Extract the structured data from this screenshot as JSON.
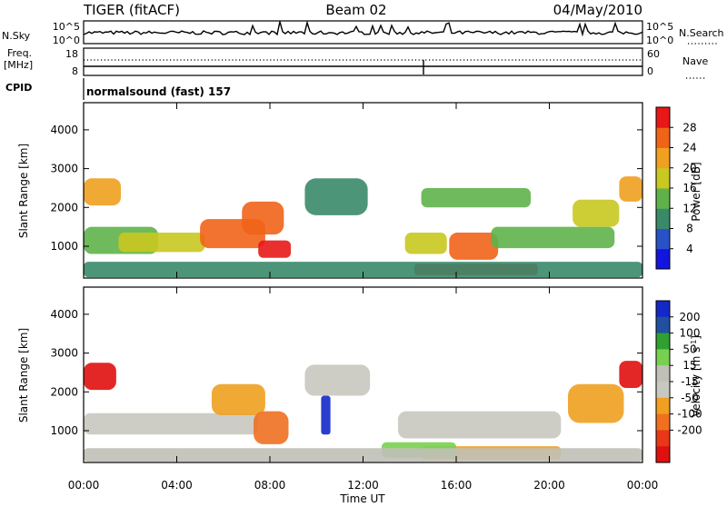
{
  "header": {
    "station": "TIGER (fitACF)",
    "beam": "Beam 02",
    "date": "04/May/2010"
  },
  "aux_panels": {
    "nsky_label": "N.Sky",
    "nsky_ticks": [
      "10^5",
      "10^0"
    ],
    "nsearch_label": "N.Search",
    "nsearch_ticks": [
      "10^5",
      "10^0"
    ],
    "freq_label": "Freq.",
    "freq_unit": "[MHz]",
    "freq_ticks": [
      "18",
      "8"
    ],
    "nave_label": "Nave",
    "nave_ticks": [
      "60",
      "0"
    ],
    "cpid_label": "CPID",
    "cpid_value": "normalsound (fast) 157"
  },
  "colors": {
    "power_scale": [
      "#1414e0",
      "#2a52c8",
      "#3a8a6a",
      "#5fb24a",
      "#c8c820",
      "#f0a020",
      "#f06418",
      "#e81818"
    ],
    "velocity_scale": [
      "#1428c8",
      "#2050a0",
      "#30a030",
      "#78d050",
      "#c0c0b8",
      "#c8c8c0",
      "#f0a020",
      "#f07020",
      "#e83818",
      "#e01010"
    ]
  },
  "chart_data": [
    {
      "type": "heatmap",
      "name": "power",
      "xlabel": "",
      "ylabel": "Slant Range [km]",
      "x_ticks": [
        "00:00",
        "04:00",
        "08:00",
        "12:00",
        "16:00",
        "20:00",
        "00:00"
      ],
      "y_ticks": [
        1000,
        2000,
        3000,
        4000
      ],
      "xlim": [
        0,
        24
      ],
      "ylim": [
        180,
        4700
      ],
      "colorbar": {
        "label": "Power [dB]",
        "ticks": [
          4,
          8,
          12,
          16,
          20,
          24,
          28
        ],
        "range": [
          0,
          32
        ]
      },
      "regions": [
        {
          "t0": 0.0,
          "t1": 1.6,
          "r0": 2050,
          "r1": 2750,
          "level": 22
        },
        {
          "t0": 0.0,
          "t1": 3.2,
          "r0": 800,
          "r1": 1500,
          "level": 14
        },
        {
          "t0": 1.5,
          "t1": 5.2,
          "r0": 850,
          "r1": 1350,
          "level": 18
        },
        {
          "t0": 5.0,
          "t1": 7.8,
          "r0": 950,
          "r1": 1700,
          "level": 24
        },
        {
          "t0": 6.8,
          "t1": 8.6,
          "r0": 1300,
          "r1": 2150,
          "level": 25
        },
        {
          "t0": 7.5,
          "t1": 8.9,
          "r0": 700,
          "r1": 1150,
          "level": 30
        },
        {
          "t0": 9.5,
          "t1": 12.2,
          "r0": 1800,
          "r1": 2750,
          "level": 8
        },
        {
          "t0": 13.8,
          "t1": 15.6,
          "r0": 800,
          "r1": 1350,
          "level": 18
        },
        {
          "t0": 15.7,
          "t1": 17.8,
          "r0": 650,
          "r1": 1350,
          "level": 27
        },
        {
          "t0": 14.2,
          "t1": 19.5,
          "r0": 250,
          "r1": 550,
          "level": 28
        },
        {
          "t0": 14.5,
          "t1": 19.2,
          "r0": 2000,
          "r1": 2500,
          "level": 12
        },
        {
          "t0": 17.5,
          "t1": 22.8,
          "r0": 950,
          "r1": 1500,
          "level": 14
        },
        {
          "t0": 21.0,
          "t1": 23.0,
          "r0": 1500,
          "r1": 2200,
          "level": 18
        },
        {
          "t0": 23.0,
          "t1": 24.0,
          "r0": 2150,
          "r1": 2800,
          "level": 22
        },
        {
          "t0": 0.0,
          "t1": 24.0,
          "r0": 200,
          "r1": 600,
          "level": 10
        }
      ]
    },
    {
      "type": "heatmap",
      "name": "velocity",
      "xlabel": "Time UT",
      "ylabel": "Slant Range [km]",
      "x_ticks": [
        "00:00",
        "04:00",
        "08:00",
        "12:00",
        "16:00",
        "20:00",
        "00:00"
      ],
      "y_ticks": [
        1000,
        2000,
        3000,
        4000
      ],
      "xlim": [
        0,
        24
      ],
      "ylim": [
        180,
        4700
      ],
      "colorbar": {
        "label": "Velocity [m s^-1]",
        "ticks": [
          200,
          100,
          50,
          15,
          -15,
          -50,
          -100,
          -200
        ],
        "range": [
          -250,
          250
        ]
      },
      "regions": [
        {
          "t0": 0.0,
          "t1": 1.4,
          "r0": 2050,
          "r1": 2750,
          "level": -200
        },
        {
          "t0": 0.0,
          "t1": 7.5,
          "r0": 900,
          "r1": 1450,
          "level": 0
        },
        {
          "t0": 5.5,
          "t1": 7.8,
          "r0": 1400,
          "r1": 2200,
          "level": -60
        },
        {
          "t0": 7.3,
          "t1": 8.8,
          "r0": 650,
          "r1": 1500,
          "level": -120
        },
        {
          "t0": 9.5,
          "t1": 12.3,
          "r0": 1900,
          "r1": 2700,
          "level": 0
        },
        {
          "t0": 10.2,
          "t1": 10.6,
          "r0": 900,
          "r1": 1900,
          "level": 220
        },
        {
          "t0": 13.5,
          "t1": 20.5,
          "r0": 800,
          "r1": 1500,
          "level": 0
        },
        {
          "t0": 14.5,
          "t1": 20.5,
          "r0": 250,
          "r1": 600,
          "level": -60
        },
        {
          "t0": 12.8,
          "t1": 16.0,
          "r0": 300,
          "r1": 700,
          "level": 60
        },
        {
          "t0": 20.8,
          "t1": 23.2,
          "r0": 1200,
          "r1": 2200,
          "level": -80
        },
        {
          "t0": 23.0,
          "t1": 24.0,
          "r0": 2100,
          "r1": 2800,
          "level": -200
        },
        {
          "t0": 0.0,
          "t1": 24.0,
          "r0": 200,
          "r1": 550,
          "level": 40
        }
      ]
    }
  ]
}
